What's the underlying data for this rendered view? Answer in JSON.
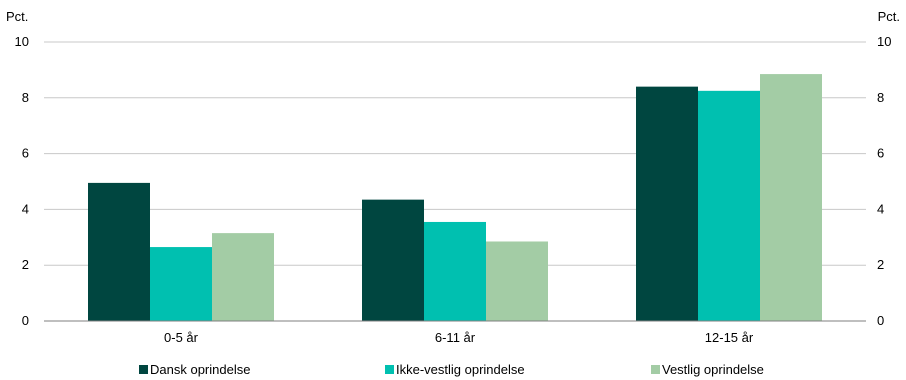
{
  "chart_data": {
    "type": "bar",
    "title": "",
    "xlabel": "",
    "ylabel_left": "Pct.",
    "ylabel_right": "Pct.",
    "categories": [
      "0-5 år",
      "6-11 år",
      "12-15 år"
    ],
    "series": [
      {
        "name": "Dansk oprindelse",
        "color": "#004640",
        "values": [
          4.95,
          4.35,
          8.4
        ]
      },
      {
        "name": "Ikke-vestlig oprindelse",
        "color": "#00c0b0",
        "values": [
          2.65,
          3.55,
          8.25
        ]
      },
      {
        "name": "Vestlig oprindelse",
        "color": "#a3cca5",
        "values": [
          3.15,
          2.85,
          8.85
        ]
      }
    ],
    "ylim": [
      0,
      10
    ],
    "yticks": [
      "0",
      "2",
      "4",
      "6",
      "8",
      "10"
    ],
    "grid": true,
    "legend_position": "bottom"
  }
}
